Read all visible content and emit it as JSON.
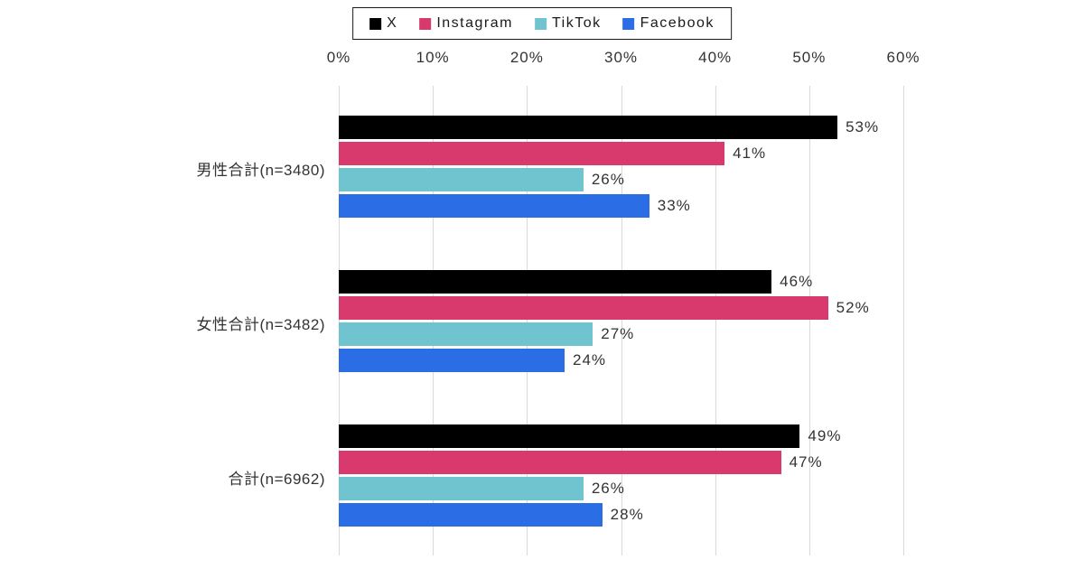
{
  "chart_data": {
    "type": "bar",
    "orientation": "horizontal",
    "title": "",
    "categories": [
      "男性合計(n=3480)",
      "女性合計(n=3482)",
      "合計(n=6962)"
    ],
    "series": [
      {
        "name": "X",
        "color": "#000000",
        "values": [
          53,
          46,
          49
        ]
      },
      {
        "name": "Instagram",
        "color": "#d93a6e",
        "values": [
          41,
          52,
          47
        ]
      },
      {
        "name": "TikTok",
        "color": "#6fc4cf",
        "values": [
          26,
          27,
          26
        ]
      },
      {
        "name": "Facebook",
        "color": "#2a6de4",
        "values": [
          33,
          24,
          28
        ]
      }
    ],
    "value_labels": [
      [
        "53%",
        "41%",
        "26%",
        "33%"
      ],
      [
        "46%",
        "52%",
        "27%",
        "24%"
      ],
      [
        "49%",
        "47%",
        "26%",
        "28%"
      ]
    ],
    "value_suffix": "%",
    "x_axis": {
      "min": 0,
      "max": 60,
      "ticks": [
        "0%",
        "10%",
        "20%",
        "30%",
        "40%",
        "50%",
        "60%"
      ],
      "position": "top"
    },
    "grid": true,
    "legend_position": "top",
    "legend_labels": [
      "X",
      "Instagram",
      "TikTok",
      "Facebook"
    ],
    "colors": {
      "grid": "#d9d9d9",
      "text": "#333333",
      "legend_border": "#1a1a1a",
      "background": "#ffffff"
    }
  }
}
